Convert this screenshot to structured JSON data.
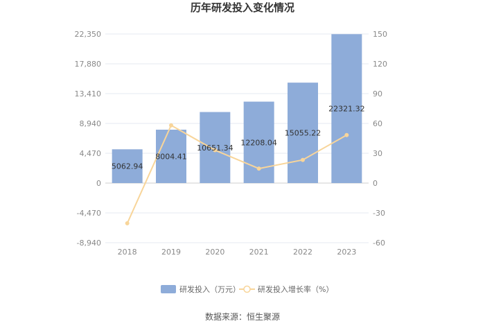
{
  "chart_data": {
    "type": "bar",
    "title": "历年研发投入变化情况",
    "categories": [
      "2018",
      "2019",
      "2020",
      "2021",
      "2022",
      "2023"
    ],
    "series": [
      {
        "name": "研发投入（万元）",
        "type": "bar",
        "axis": "left",
        "color": "#8eacd9",
        "values": [
          5062.94,
          8004.41,
          10651.34,
          12208.04,
          15055.22,
          22321.32
        ],
        "labels": [
          "5062.94",
          "8004.41",
          "10651.34",
          "12208.04",
          "15055.22",
          "22321.32"
        ]
      },
      {
        "name": "研发投入增长率（%）",
        "type": "line",
        "axis": "right",
        "color": "#f8d59a",
        "values": [
          -40.5,
          58.1,
          33.1,
          14.6,
          23.3,
          48.3
        ]
      }
    ],
    "y_left": {
      "ticks": [
        -8940,
        -4470,
        0,
        4470,
        8940,
        13410,
        17880,
        22350
      ],
      "tick_labels": [
        "-8,940",
        "-4,470",
        "0",
        "4,470",
        "8,940",
        "13,410",
        "17,880",
        "22,350"
      ],
      "range": [
        -8940,
        22350
      ]
    },
    "y_right": {
      "ticks": [
        -60,
        -30,
        0,
        30,
        60,
        90,
        120,
        150
      ],
      "tick_labels": [
        "-60",
        "-30",
        "0",
        "30",
        "60",
        "90",
        "120",
        "150"
      ],
      "range": [
        -60,
        150
      ]
    },
    "grid": true,
    "legend_position": "bottom"
  },
  "source": "数据来源：恒生聚源"
}
